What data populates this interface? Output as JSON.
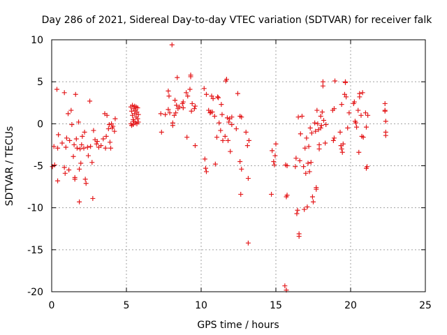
{
  "chart_data": {
    "type": "scatter",
    "title": "Day 286 of 2021, Sidereal Day-to-day VTEC variation (SDTVAR) for receiver falk",
    "xlabel": "GPS time / hours",
    "ylabel": "SDTVAR / TECUs",
    "xlim": [
      0,
      25
    ],
    "ylim": [
      -20,
      10
    ],
    "x_ticks": [
      "0",
      "5",
      "10",
      "15",
      "20",
      "25"
    ],
    "y_ticks": [
      "-20",
      "-15",
      "-10",
      "-5",
      "0",
      "5",
      "10"
    ],
    "grid": true,
    "marker": "plus",
    "series": [
      {
        "name": "SDTVAR",
        "color": "#e41a1c",
        "points": [
          [
            0.05,
            -5.1
          ],
          [
            0.15,
            -2.7
          ],
          [
            0.2,
            -4.9
          ],
          [
            0.35,
            4.1
          ],
          [
            0.4,
            -2.9
          ],
          [
            0.4,
            -6.8
          ],
          [
            0.45,
            -1.3
          ],
          [
            0.7,
            -2.3
          ],
          [
            0.85,
            3.7
          ],
          [
            0.85,
            -5.2
          ],
          [
            0.9,
            -5.9
          ],
          [
            0.95,
            -2.8
          ],
          [
            1.0,
            -1.7
          ],
          [
            1.1,
            1.2
          ],
          [
            1.15,
            -5.5
          ],
          [
            1.2,
            -2.0
          ],
          [
            1.3,
            1.6
          ],
          [
            1.35,
            -0.1
          ],
          [
            1.45,
            -3.9
          ],
          [
            1.5,
            -2.5
          ],
          [
            1.55,
            -6.4
          ],
          [
            1.55,
            -6.6
          ],
          [
            1.6,
            3.5
          ],
          [
            1.65,
            -1.8
          ],
          [
            1.7,
            -2.9
          ],
          [
            1.8,
            0.2
          ],
          [
            1.85,
            -9.3
          ],
          [
            1.85,
            -5.4
          ],
          [
            1.9,
            -3.0
          ],
          [
            1.95,
            -4.7
          ],
          [
            2.0,
            -2.5
          ],
          [
            2.05,
            -1.5
          ],
          [
            2.15,
            -2.9
          ],
          [
            2.2,
            -1.0
          ],
          [
            2.25,
            -6.6
          ],
          [
            2.3,
            -7.1
          ],
          [
            2.4,
            -2.8
          ],
          [
            2.45,
            -3.8
          ],
          [
            2.55,
            2.7
          ],
          [
            2.6,
            -2.7
          ],
          [
            2.7,
            -4.6
          ],
          [
            2.75,
            -8.9
          ],
          [
            2.8,
            -0.8
          ],
          [
            2.9,
            -1.9
          ],
          [
            3.0,
            -2.4
          ],
          [
            3.05,
            -2.1
          ],
          [
            3.15,
            -2.8
          ],
          [
            3.3,
            -2.6
          ],
          [
            3.45,
            -1.8
          ],
          [
            3.55,
            1.2
          ],
          [
            3.6,
            -2.9
          ],
          [
            3.65,
            -1.5
          ],
          [
            3.7,
            1.0
          ],
          [
            3.8,
            -0.6
          ],
          [
            3.85,
            -0.1
          ],
          [
            3.9,
            -2.2
          ],
          [
            3.95,
            -2.9
          ],
          [
            4.0,
            0.0
          ],
          [
            4.05,
            -0.5
          ],
          [
            4.1,
            -0.3
          ],
          [
            4.2,
            -0.9
          ],
          [
            4.25,
            0.6
          ],
          [
            5.3,
            0.0
          ],
          [
            5.3,
            2.0
          ],
          [
            5.35,
            1.5
          ],
          [
            5.35,
            -0.2
          ],
          [
            5.4,
            1.0
          ],
          [
            5.4,
            2.2
          ],
          [
            5.45,
            0.5
          ],
          [
            5.45,
            -0.1
          ],
          [
            5.5,
            1.8
          ],
          [
            5.5,
            0.3
          ],
          [
            5.55,
            2.1
          ],
          [
            5.55,
            1.2
          ],
          [
            5.6,
            0.1
          ],
          [
            5.6,
            1.6
          ],
          [
            5.65,
            0.8
          ],
          [
            5.65,
            2.0
          ],
          [
            5.7,
            0.0
          ],
          [
            5.7,
            1.4
          ],
          [
            5.75,
            1.9
          ],
          [
            5.75,
            0.6
          ],
          [
            5.8,
            1.1
          ],
          [
            5.8,
            0.2
          ],
          [
            7.3,
            1.2
          ],
          [
            7.35,
            -1.0
          ],
          [
            7.6,
            1.1
          ],
          [
            7.8,
            1.7
          ],
          [
            7.8,
            3.9
          ],
          [
            7.85,
            3.3
          ],
          [
            7.9,
            1.3
          ],
          [
            8.05,
            9.4
          ],
          [
            8.1,
            0.1
          ],
          [
            8.1,
            -0.2
          ],
          [
            8.2,
            1.0
          ],
          [
            8.25,
            2.8
          ],
          [
            8.3,
            1.3
          ],
          [
            8.35,
            2.2
          ],
          [
            8.4,
            5.5
          ],
          [
            8.45,
            1.8
          ],
          [
            8.55,
            2.0
          ],
          [
            8.75,
            2.4
          ],
          [
            8.8,
            1.9
          ],
          [
            8.8,
            2.6
          ],
          [
            9.0,
            3.7
          ],
          [
            9.05,
            -1.6
          ],
          [
            9.1,
            3.3
          ],
          [
            9.25,
            4.1
          ],
          [
            9.3,
            5.8
          ],
          [
            9.3,
            5.6
          ],
          [
            9.35,
            1.5
          ],
          [
            9.4,
            2.4
          ],
          [
            9.55,
            1.8
          ],
          [
            9.6,
            2.1
          ],
          [
            9.6,
            -2.6
          ],
          [
            10.2,
            4.2
          ],
          [
            10.25,
            -4.2
          ],
          [
            10.3,
            -5.3
          ],
          [
            10.35,
            -5.7
          ],
          [
            10.35,
            3.5
          ],
          [
            10.5,
            1.6
          ],
          [
            10.6,
            1.3
          ],
          [
            10.65,
            1.4
          ],
          [
            10.7,
            3.3
          ],
          [
            10.75,
            1.4
          ],
          [
            10.8,
            3.0
          ],
          [
            10.9,
            0.9
          ],
          [
            10.95,
            -4.8
          ],
          [
            11.05,
            -1.6
          ],
          [
            11.1,
            3.2
          ],
          [
            11.15,
            3.1
          ],
          [
            11.2,
            0.1
          ],
          [
            11.3,
            -0.8
          ],
          [
            11.35,
            2.3
          ],
          [
            11.4,
            1.1
          ],
          [
            11.45,
            -2.0
          ],
          [
            11.6,
            -1.5
          ],
          [
            11.65,
            5.1
          ],
          [
            11.7,
            5.3
          ],
          [
            11.75,
            0.7
          ],
          [
            11.8,
            -2.0
          ],
          [
            11.85,
            0.2
          ],
          [
            11.9,
            0.6
          ],
          [
            11.95,
            -3.3
          ],
          [
            12.05,
            0.8
          ],
          [
            12.05,
            -0.1
          ],
          [
            12.35,
            -0.6
          ],
          [
            12.45,
            3.6
          ],
          [
            12.6,
            0.9
          ],
          [
            12.6,
            -4.5
          ],
          [
            12.65,
            -8.4
          ],
          [
            12.7,
            -5.4
          ],
          [
            12.7,
            0.8
          ],
          [
            13.0,
            -1.0
          ],
          [
            13.1,
            -2.6
          ],
          [
            13.15,
            -14.2
          ],
          [
            13.15,
            -6.5
          ],
          [
            13.2,
            -2.0
          ],
          [
            14.7,
            -8.4
          ],
          [
            14.75,
            -3.2
          ],
          [
            14.85,
            -4.5
          ],
          [
            14.9,
            -4.9
          ],
          [
            14.95,
            -3.8
          ],
          [
            15.0,
            -2.4
          ],
          [
            15.6,
            -19.3
          ],
          [
            15.65,
            -4.9
          ],
          [
            15.7,
            -8.7
          ],
          [
            15.7,
            -19.8
          ],
          [
            15.75,
            -5.0
          ],
          [
            15.75,
            -8.5
          ],
          [
            16.3,
            -5.1
          ],
          [
            16.35,
            -4.1
          ],
          [
            16.4,
            -10.7
          ],
          [
            16.45,
            -10.3
          ],
          [
            16.5,
            0.8
          ],
          [
            16.55,
            -13.4
          ],
          [
            16.55,
            -13.1
          ],
          [
            16.6,
            -4.4
          ],
          [
            16.65,
            -1.2
          ],
          [
            16.75,
            0.9
          ],
          [
            16.85,
            -5.1
          ],
          [
            16.9,
            -10.2
          ],
          [
            16.95,
            -2.9
          ],
          [
            17.0,
            -5.9
          ],
          [
            17.05,
            -1.7
          ],
          [
            17.1,
            -9.9
          ],
          [
            17.15,
            -4.7
          ],
          [
            17.2,
            -2.7
          ],
          [
            17.25,
            -5.7
          ],
          [
            17.3,
            -0.5
          ],
          [
            17.35,
            -4.6
          ],
          [
            17.4,
            -1.1
          ],
          [
            17.45,
            -8.7
          ],
          [
            17.5,
            -9.3
          ],
          [
            17.6,
            0.1
          ],
          [
            17.65,
            -0.9
          ],
          [
            17.7,
            -7.6
          ],
          [
            17.7,
            -7.8
          ],
          [
            17.75,
            1.6
          ],
          [
            17.8,
            0.0
          ],
          [
            17.85,
            -0.7
          ],
          [
            17.9,
            -2.5
          ],
          [
            17.9,
            -3.0
          ],
          [
            18.0,
            -0.5
          ],
          [
            18.0,
            0.9
          ],
          [
            18.05,
            -0.2
          ],
          [
            18.1,
            1.4
          ],
          [
            18.15,
            5.0
          ],
          [
            18.15,
            4.5
          ],
          [
            18.2,
            0.4
          ],
          [
            18.3,
            -2.3
          ],
          [
            18.35,
            -0.1
          ],
          [
            18.8,
            1.6
          ],
          [
            18.85,
            -2.0
          ],
          [
            18.9,
            -1.7
          ],
          [
            18.9,
            1.8
          ],
          [
            18.95,
            5.1
          ],
          [
            19.3,
            -1.0
          ],
          [
            19.35,
            -2.6
          ],
          [
            19.4,
            2.3
          ],
          [
            19.4,
            -3.0
          ],
          [
            19.45,
            -3.4
          ],
          [
            19.5,
            -2.4
          ],
          [
            19.6,
            3.5
          ],
          [
            19.65,
            4.9
          ],
          [
            19.65,
            5.0
          ],
          [
            19.7,
            3.2
          ],
          [
            19.8,
            -0.5
          ],
          [
            19.9,
            1.3
          ],
          [
            20.2,
            2.4
          ],
          [
            20.25,
            2.6
          ],
          [
            20.3,
            0.3
          ],
          [
            20.35,
            0.1
          ],
          [
            20.4,
            -0.4
          ],
          [
            20.5,
            1.6
          ],
          [
            20.55,
            -3.4
          ],
          [
            20.6,
            3.2
          ],
          [
            20.6,
            3.6
          ],
          [
            20.7,
            1.0
          ],
          [
            20.75,
            -1.5
          ],
          [
            20.8,
            3.7
          ],
          [
            20.85,
            -1.6
          ],
          [
            21.0,
            1.3
          ],
          [
            21.05,
            -0.4
          ],
          [
            21.05,
            -5.3
          ],
          [
            21.1,
            -5.1
          ],
          [
            21.15,
            1.0
          ],
          [
            22.3,
            2.4
          ],
          [
            22.3,
            1.6
          ],
          [
            22.3,
            1.5
          ],
          [
            22.35,
            0.3
          ],
          [
            22.35,
            -1.0
          ],
          [
            22.35,
            -1.4
          ]
        ]
      }
    ]
  }
}
